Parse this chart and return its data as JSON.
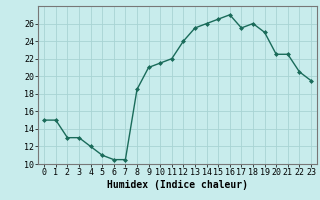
{
  "x": [
    0,
    1,
    2,
    3,
    4,
    5,
    6,
    7,
    8,
    9,
    10,
    11,
    12,
    13,
    14,
    15,
    16,
    17,
    18,
    19,
    20,
    21,
    22,
    23
  ],
  "y": [
    15,
    15,
    13,
    13,
    12,
    11,
    10.5,
    10.5,
    18.5,
    21,
    21.5,
    22,
    24,
    25.5,
    26,
    26.5,
    27,
    25.5,
    26,
    25,
    22.5,
    22.5,
    20.5,
    19.5
  ],
  "line_color": "#1a6b5a",
  "marker": "D",
  "marker_size": 2,
  "bg_color": "#c8ecec",
  "grid_color": "#a8d4d4",
  "xlabel": "Humidex (Indice chaleur)",
  "xlabel_fontsize": 7,
  "ylim": [
    10,
    28
  ],
  "xlim": [
    -0.5,
    23.5
  ],
  "yticks": [
    10,
    12,
    14,
    16,
    18,
    20,
    22,
    24,
    26
  ],
  "xtick_labels": [
    "0",
    "1",
    "2",
    "3",
    "4",
    "5",
    "6",
    "7",
    "8",
    "9",
    "10",
    "11",
    "12",
    "13",
    "14",
    "15",
    "16",
    "17",
    "18",
    "19",
    "20",
    "21",
    "22",
    "23"
  ],
  "tick_fontsize": 6,
  "linewidth": 1.0
}
